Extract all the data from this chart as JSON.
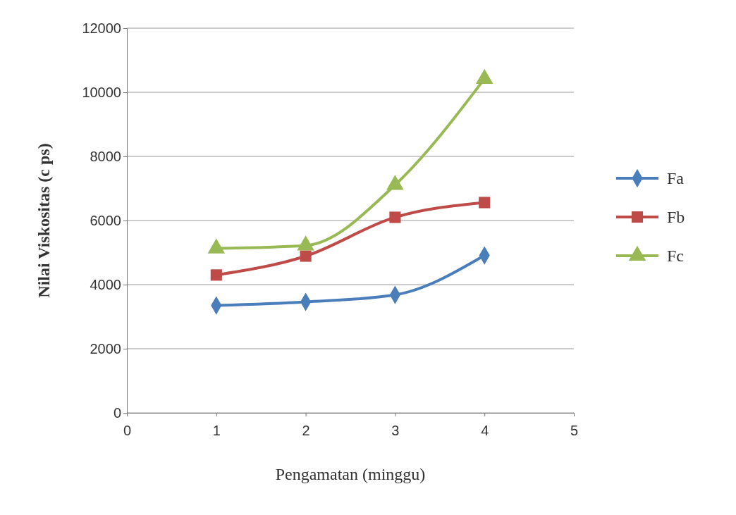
{
  "chart_data": {
    "type": "line",
    "xlabel": "Pengamatan (minggu)",
    "ylabel": "Nilai Viskositas (c ps)",
    "x": [
      1,
      2,
      3,
      4
    ],
    "series": [
      {
        "name": "Fa",
        "color": "#4a7ebb",
        "marker": "diamond",
        "values": [
          3350,
          3460,
          3680,
          4910
        ]
      },
      {
        "name": "Fb",
        "color": "#be4b48",
        "marker": "square",
        "values": [
          4300,
          4890,
          6100,
          6560
        ]
      },
      {
        "name": "Fc",
        "color": "#98b954",
        "marker": "triangle",
        "values": [
          5130,
          5220,
          7110,
          10420
        ]
      }
    ],
    "xlim": [
      0,
      5
    ],
    "xticks": [
      0,
      1,
      2,
      3,
      4,
      5
    ],
    "ylim": [
      0,
      12000
    ],
    "yticks": [
      0,
      2000,
      4000,
      6000,
      8000,
      10000,
      12000
    ],
    "grid": "y",
    "legend": "right"
  }
}
